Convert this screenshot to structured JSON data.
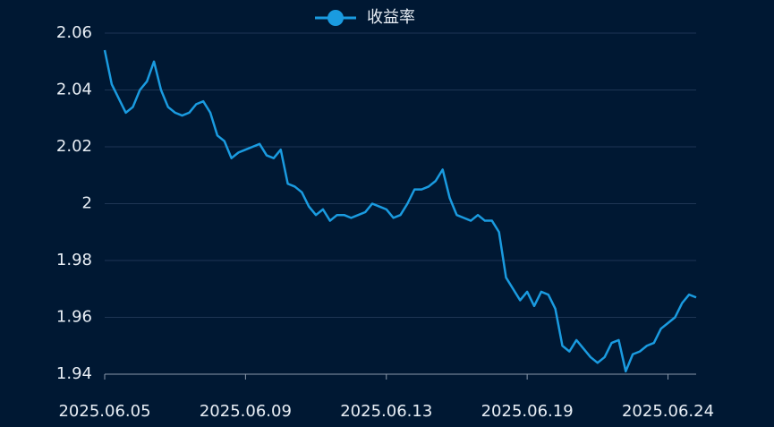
{
  "chart_data": {
    "type": "line",
    "categories": [
      "2025.06.05",
      null,
      null,
      null,
      null,
      null,
      null,
      null,
      null,
      null,
      null,
      null,
      null,
      null,
      null,
      null,
      null,
      null,
      null,
      null,
      "2025.06.09",
      null,
      null,
      null,
      null,
      null,
      null,
      null,
      null,
      null,
      null,
      null,
      null,
      null,
      null,
      null,
      null,
      null,
      null,
      null,
      "2025.06.13",
      null,
      null,
      null,
      null,
      null,
      null,
      null,
      null,
      null,
      null,
      null,
      null,
      null,
      null,
      null,
      null,
      null,
      null,
      null,
      "2025.06.19",
      null,
      null,
      null,
      null,
      null,
      null,
      null,
      null,
      null,
      null,
      null,
      null,
      null,
      null,
      null,
      null,
      null,
      null,
      null,
      "2025.06.24",
      null,
      null,
      null,
      null
    ],
    "series": [
      {
        "name": "收益率",
        "color": "#1a9be0",
        "values": [
          2.054,
          2.042,
          2.037,
          2.032,
          2.034,
          2.04,
          2.043,
          2.05,
          2.04,
          2.034,
          2.032,
          2.031,
          2.032,
          2.035,
          2.036,
          2.032,
          2.024,
          2.022,
          2.016,
          2.018,
          2.019,
          2.02,
          2.021,
          2.017,
          2.016,
          2.019,
          2.007,
          2.006,
          2.004,
          1.999,
          1.996,
          1.998,
          1.994,
          1.996,
          1.996,
          1.995,
          1.996,
          1.997,
          2.0,
          1.999,
          1.998,
          1.995,
          1.996,
          2.0,
          2.005,
          2.005,
          2.006,
          2.008,
          2.012,
          2.002,
          1.996,
          1.995,
          1.994,
          1.996,
          1.994,
          1.994,
          1.99,
          1.974,
          1.97,
          1.966,
          1.969,
          1.964,
          1.969,
          1.968,
          1.963,
          1.95,
          1.948,
          1.952,
          1.949,
          1.946,
          1.944,
          1.946,
          1.951,
          1.952,
          1.941,
          1.947,
          1.948,
          1.95,
          1.951,
          1.956,
          1.958,
          1.96,
          1.965,
          1.968,
          1.967
        ]
      }
    ],
    "ylim": [
      1.94,
      2.06
    ],
    "yticks": [
      1.94,
      1.96,
      1.98,
      2,
      2.02,
      2.04,
      2.06
    ],
    "grid": true
  }
}
